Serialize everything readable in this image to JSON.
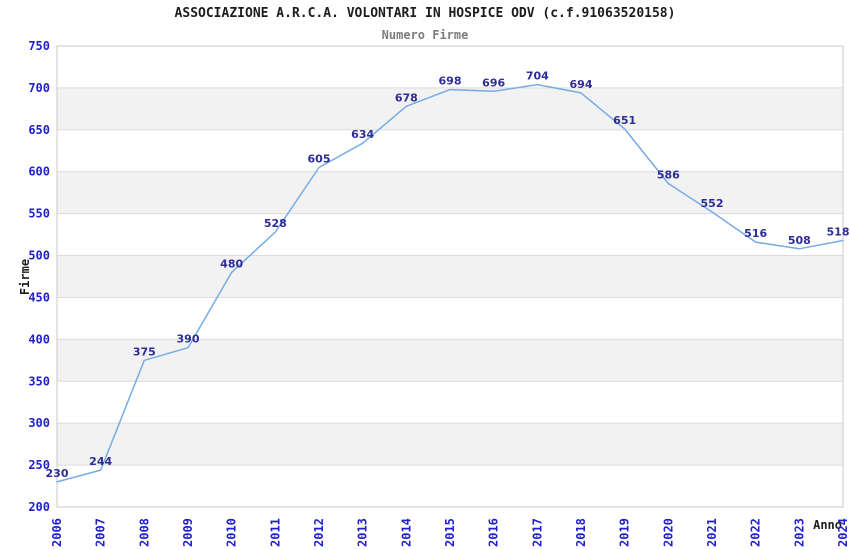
{
  "chart_data": {
    "type": "line",
    "title": "ASSOCIAZIONE A.R.C.A. VOLONTARI IN HOSPICE ODV (c.f.91063520158)",
    "subtitle": "Numero Firme",
    "xlabel": "Anno",
    "ylabel": "Firme",
    "categories": [
      "2006",
      "2007",
      "2008",
      "2009",
      "2010",
      "2011",
      "2012",
      "2013",
      "2014",
      "2015",
      "2016",
      "2017",
      "2018",
      "2019",
      "2020",
      "2021",
      "2022",
      "2023",
      "2024"
    ],
    "values": [
      230,
      244,
      375,
      390,
      480,
      528,
      605,
      634,
      678,
      698,
      696,
      704,
      694,
      651,
      586,
      552,
      516,
      508,
      518
    ],
    "ylim": [
      200,
      750
    ],
    "ytick_step": 50,
    "grid": true,
    "banded_background": true,
    "band_gray_lower_edges": [
      250,
      350,
      450,
      550,
      650
    ],
    "legend_position": "none",
    "show_point_markers": false,
    "data_labels_shown": true,
    "colors": {
      "line": "#76ace4",
      "data_label": "#2d2d96",
      "tick_label": "#2121cc",
      "band": "#f2f2f2",
      "gridline": "#dcdcdc",
      "plot_border": "#c8c8c8",
      "title": "#1c1c1c",
      "subtitle": "#7d7d7d",
      "axis_title": "#1c1c1c",
      "background": "#ffffff"
    }
  }
}
